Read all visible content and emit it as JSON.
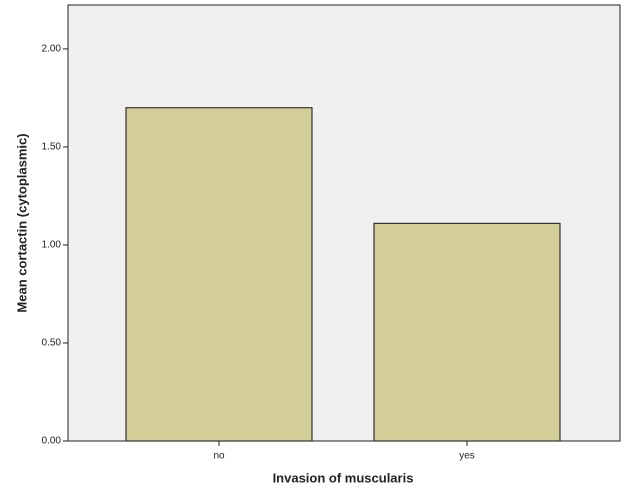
{
  "chart_data": {
    "type": "bar",
    "x_label": "Invasion of muscularis",
    "y_label": "Mean cortactin (cytoplasmic)",
    "categories": [
      "no",
      "yes"
    ],
    "values": [
      1.7,
      1.11
    ],
    "color": "#d3ce97",
    "ylim": [
      0,
      2.224
    ],
    "yticks": [
      {
        "value": 0,
        "label": "0.00"
      },
      {
        "value": 0.5,
        "label": "0.50"
      },
      {
        "value": 1,
        "label": "1.00"
      },
      {
        "value": 1.5,
        "label": "1.50"
      },
      {
        "value": 2,
        "label": "2.00"
      }
    ]
  }
}
